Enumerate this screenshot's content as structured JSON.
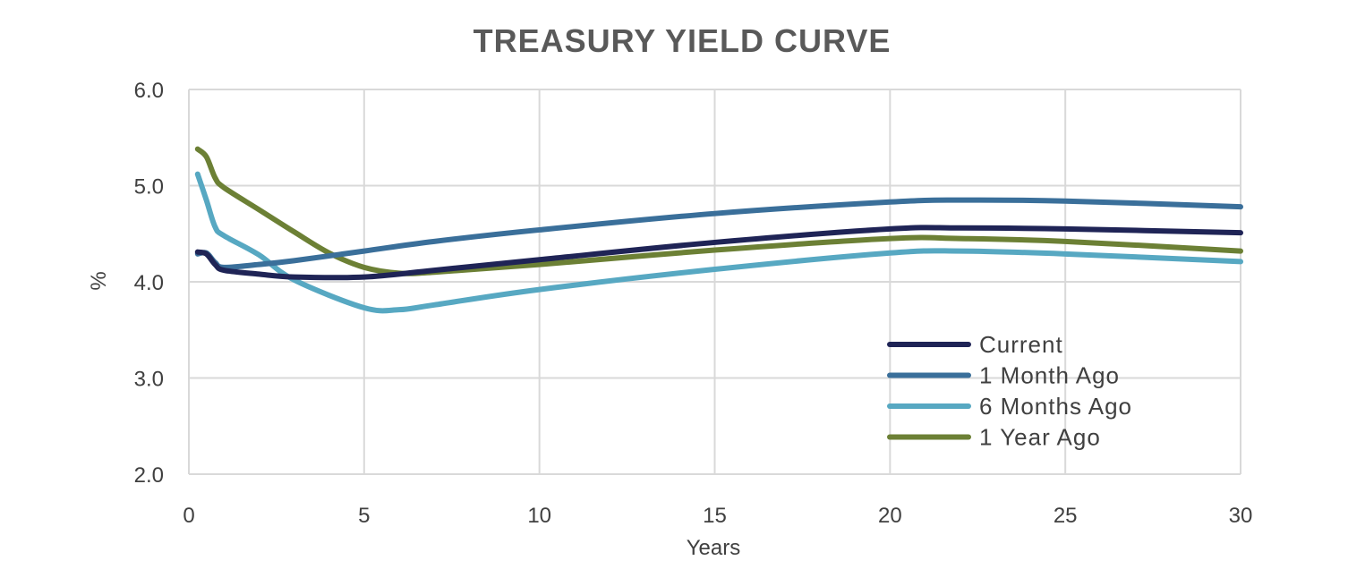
{
  "chart_data": {
    "type": "line",
    "title": "TREASURY  YIELD CURVE",
    "xlabel": "Years",
    "ylabel": "%",
    "xlim": [
      0,
      30
    ],
    "ylim": [
      2.0,
      6.0
    ],
    "xticks": [
      0,
      5,
      10,
      15,
      20,
      25,
      30
    ],
    "xtick_labels": [
      "0",
      "5",
      "10",
      "15",
      "20",
      "25",
      "30"
    ],
    "yticks": [
      2.0,
      3.0,
      4.0,
      5.0,
      6.0
    ],
    "ytick_labels": [
      "2.0",
      "3.0",
      "4.0",
      "5.0",
      "6.0"
    ],
    "grid": true,
    "legend_position": "bottom-right",
    "series": [
      {
        "name": "Current",
        "color": "#1f2456",
        "x": [
          0.25,
          0.5,
          0.75,
          1,
          2,
          3,
          5,
          7,
          10,
          15,
          20,
          22,
          25,
          30
        ],
        "y": [
          4.31,
          4.29,
          4.18,
          4.12,
          4.08,
          4.05,
          4.05,
          4.12,
          4.23,
          4.41,
          4.55,
          4.56,
          4.55,
          4.51
        ]
      },
      {
        "name": "1 Month Ago",
        "color": "#3a6f9a",
        "x": [
          0.25,
          0.5,
          0.75,
          1,
          2,
          3,
          5,
          7,
          10,
          15,
          20,
          22,
          25,
          30
        ],
        "y": [
          4.29,
          4.3,
          4.2,
          4.15,
          4.18,
          4.22,
          4.32,
          4.42,
          4.54,
          4.71,
          4.83,
          4.85,
          4.84,
          4.78
        ]
      },
      {
        "name": "6 Months Ago",
        "color": "#57a8c2",
        "x": [
          0.25,
          0.5,
          0.75,
          1,
          2,
          3,
          5,
          6,
          7,
          10,
          15,
          20,
          22,
          25,
          30
        ],
        "y": [
          5.12,
          4.85,
          4.57,
          4.48,
          4.28,
          4.02,
          3.73,
          3.71,
          3.76,
          3.92,
          4.13,
          4.3,
          4.32,
          4.29,
          4.21
        ]
      },
      {
        "name": "1 Year Ago",
        "color": "#6c8035",
        "x": [
          0.25,
          0.5,
          0.75,
          1,
          2,
          3,
          4,
          5,
          6,
          7,
          10,
          15,
          20,
          22,
          25,
          30
        ],
        "y": [
          5.38,
          5.3,
          5.08,
          4.98,
          4.75,
          4.52,
          4.3,
          4.15,
          4.09,
          4.1,
          4.18,
          4.33,
          4.45,
          4.45,
          4.42,
          4.32
        ]
      }
    ]
  }
}
